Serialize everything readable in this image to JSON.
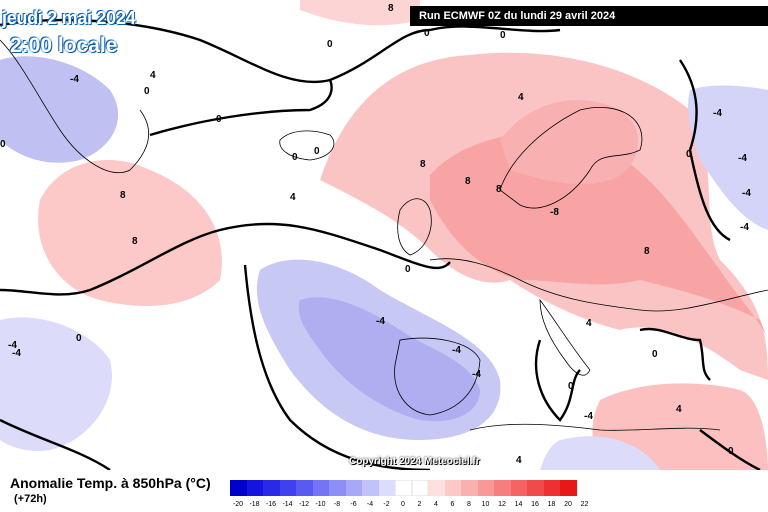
{
  "header": {
    "date_line": "jeudi 2 mai 2024",
    "time_line": "2:00 locale",
    "run_info": "Run ECMWF 0Z du lundi 29 avril 2024"
  },
  "footer": {
    "variable": "Anomalie Temp. à 850hPa (°C)",
    "lead_time": "(+72h)",
    "copyright": "Copyright 2024 Meteociel.fr"
  },
  "legend": {
    "ticks": [
      "-20",
      "-18",
      "-16",
      "-14",
      "-12",
      "-10",
      "-8",
      "-6",
      "-4",
      "-2",
      "0",
      "2",
      "4",
      "6",
      "8",
      "10",
      "12",
      "14",
      "16",
      "18",
      "20",
      "22"
    ],
    "colors": [
      "#0000cc",
      "#1414dd",
      "#2a2ae6",
      "#4040ee",
      "#5a5af2",
      "#7474f5",
      "#8e8ef7",
      "#a8a8f8",
      "#c2c2fa",
      "#dcdcfc",
      "#ffffff",
      "#ffffff",
      "#fde0e0",
      "#fcc8c8",
      "#fbb0b0",
      "#f99898",
      "#f77e7e",
      "#f56464",
      "#f24a4a",
      "#ee3030",
      "#e81818"
    ]
  },
  "map_labels": [
    {
      "text": "8"
    },
    {
      "text": "0"
    },
    {
      "text": "0"
    },
    {
      "text": "0"
    },
    {
      "text": "4"
    },
    {
      "text": "0"
    },
    {
      "text": "4"
    },
    {
      "text": "0"
    },
    {
      "text": "-4"
    },
    {
      "text": "0"
    },
    {
      "text": "0"
    },
    {
      "text": "8"
    },
    {
      "text": "4"
    },
    {
      "text": "0"
    },
    {
      "text": "-4"
    },
    {
      "text": "0"
    },
    {
      "text": "-4"
    },
    {
      "text": "-4"
    },
    {
      "text": "8"
    },
    {
      "text": "8"
    },
    {
      "text": "8"
    },
    {
      "text": "-8"
    },
    {
      "text": "8"
    },
    {
      "text": "8"
    },
    {
      "text": "4"
    },
    {
      "text": "0"
    },
    {
      "text": "-4"
    },
    {
      "text": "-4"
    },
    {
      "text": "0"
    },
    {
      "text": "-4"
    },
    {
      "text": "0"
    },
    {
      "text": "-4"
    },
    {
      "text": "0"
    },
    {
      "text": "4"
    },
    {
      "text": "-4"
    },
    {
      "text": "0"
    },
    {
      "text": "4"
    },
    {
      "text": "-4"
    },
    {
      "text": "-4"
    }
  ]
}
